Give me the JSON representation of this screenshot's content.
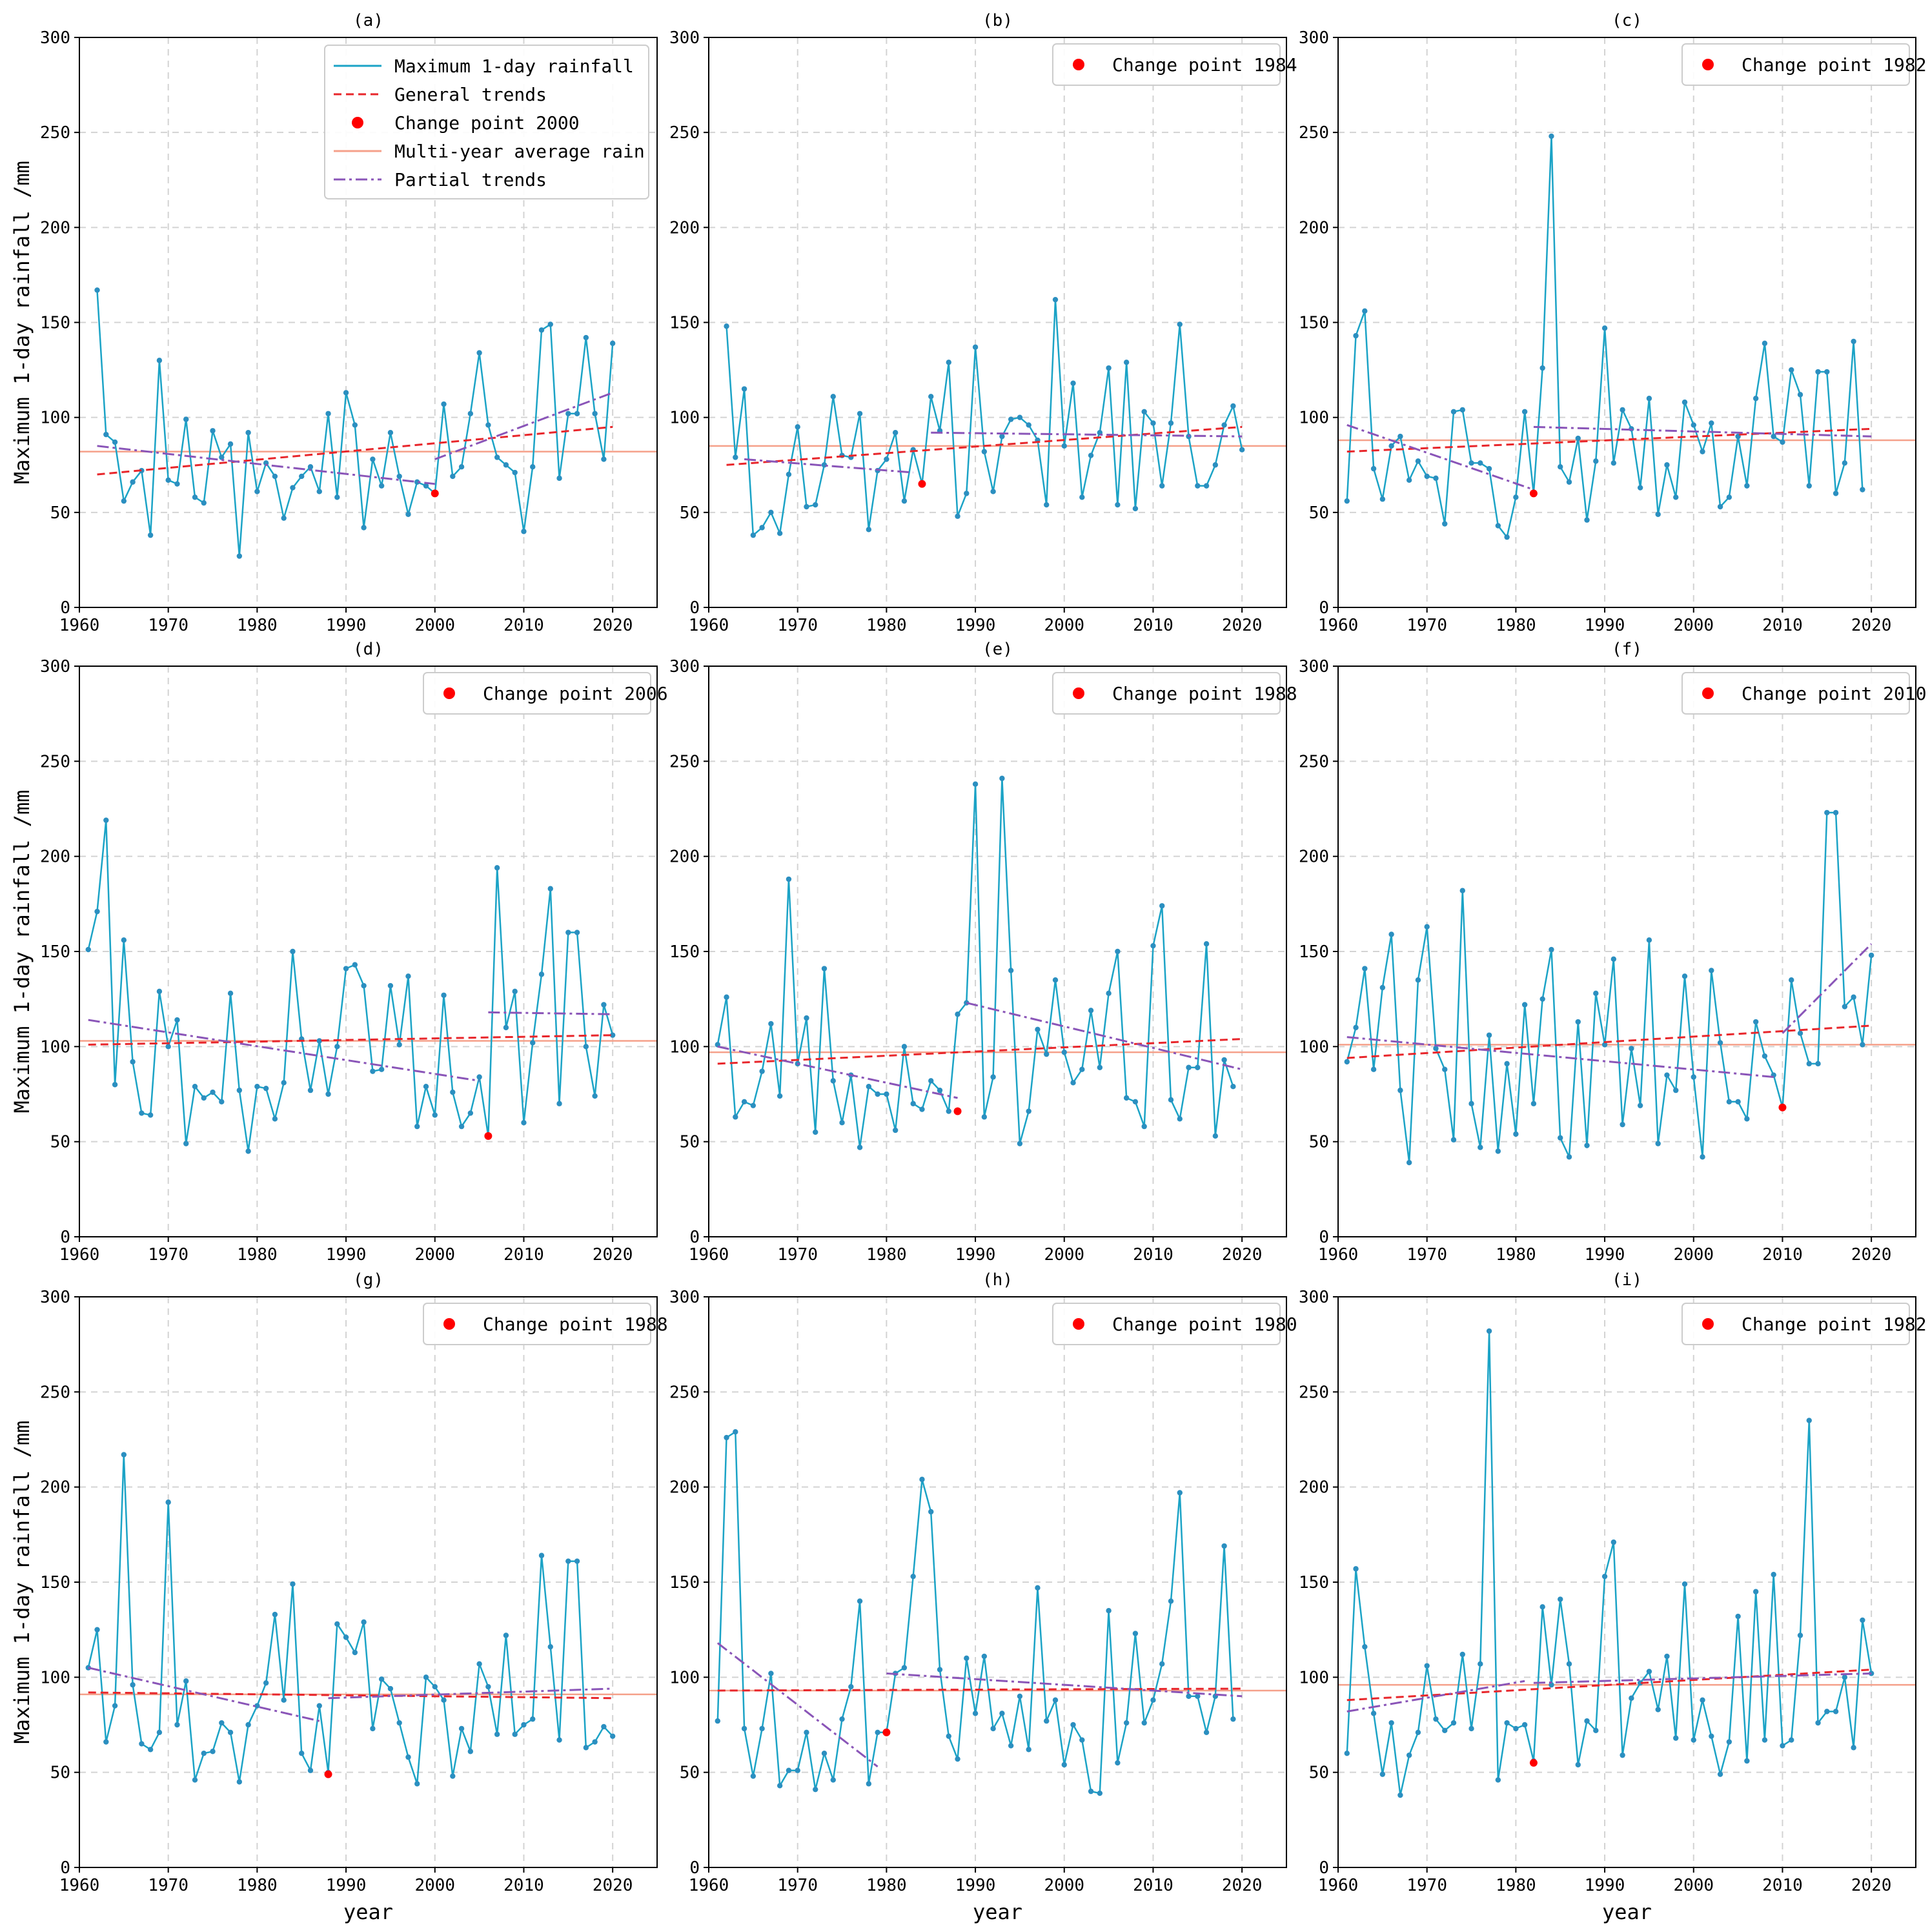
{
  "figure": {
    "y_label": "Maximum 1-day rainfall /mm",
    "x_label": "year",
    "colors": {
      "series": "#1ba3c6",
      "series_point": "#2b8fc0",
      "general_trend": "#e8262b",
      "partial_trend": "#8a55b8",
      "average": "#f5a08a",
      "change_point": "#ff0000",
      "grid": "#d3d3d3"
    }
  },
  "chart_data": [
    {
      "panel": "(a)",
      "type": "line",
      "xlabel": "",
      "ylabel": "Maximum 1-day rainfall /mm",
      "xlim": [
        1960,
        2025
      ],
      "ylim": [
        0,
        300
      ],
      "xticks": [
        "1960",
        "1970",
        "1980",
        "1990",
        "2000",
        "2010",
        "2020"
      ],
      "yticks": [
        "0",
        "50",
        "100",
        "150",
        "200",
        "250",
        "300"
      ],
      "start_year": 1962,
      "values": [
        167,
        91,
        87,
        56,
        66,
        72,
        38,
        130,
        67,
        65,
        99,
        58,
        55,
        93,
        79,
        86,
        27,
        92,
        61,
        76,
        69,
        47,
        63,
        69,
        74,
        61,
        102,
        58,
        113,
        96,
        42,
        78,
        64,
        92,
        69,
        49,
        66,
        64,
        60,
        107,
        69,
        74,
        102,
        134,
        96,
        79,
        75,
        71,
        40,
        74,
        146,
        149,
        68,
        102,
        102,
        142,
        102,
        78,
        139
      ],
      "general_trend": [
        [
          1962,
          70
        ],
        [
          2020,
          95
        ]
      ],
      "average": 82,
      "partial_trends": [
        [
          [
            1962,
            85
          ],
          [
            2000,
            65
          ]
        ],
        [
          [
            2000,
            78
          ],
          [
            2020,
            113
          ]
        ]
      ],
      "change_point": {
        "year": 2000,
        "value": 60
      },
      "legend_entries": {
        "rainfall": "Maximum 1-day rainfall",
        "general": "General trends",
        "change": "Change point 2000",
        "average": "Multi-year average rain",
        "partial": "Partial trends"
      }
    },
    {
      "panel": "(b)",
      "type": "line",
      "xlabel": "",
      "ylabel": "",
      "xlim": [
        1960,
        2025
      ],
      "ylim": [
        0,
        300
      ],
      "xticks": [
        "1960",
        "1970",
        "1980",
        "1990",
        "2000",
        "2010",
        "2020"
      ],
      "yticks": [
        "0",
        "50",
        "100",
        "150",
        "200",
        "250",
        "300"
      ],
      "start_year": 1962,
      "values": [
        148,
        79,
        115,
        38,
        42,
        50,
        39,
        70,
        95,
        53,
        54,
        75,
        111,
        80,
        79,
        102,
        41,
        72,
        78,
        92,
        56,
        83,
        65,
        111,
        93,
        129,
        48,
        60,
        137,
        82,
        61,
        90,
        99,
        100,
        96,
        88,
        54,
        162,
        85,
        118,
        58,
        80,
        92,
        126,
        54,
        129,
        52,
        103,
        97,
        64,
        97,
        149,
        90,
        64,
        64,
        75,
        96,
        106,
        83
      ],
      "general_trend": [
        [
          1962,
          75
        ],
        [
          2020,
          95
        ]
      ],
      "average": 85,
      "partial_trends": [
        [
          [
            1964,
            78
          ],
          [
            1983,
            71
          ]
        ],
        [
          [
            1985,
            92
          ],
          [
            2020,
            90
          ]
        ]
      ],
      "change_point": {
        "year": 1984,
        "value": 65
      },
      "legend_entries": {
        "change": "Change point 1984"
      }
    },
    {
      "panel": "(c)",
      "type": "line",
      "xlabel": "",
      "ylabel": "",
      "xlim": [
        1960,
        2025
      ],
      "ylim": [
        0,
        300
      ],
      "xticks": [
        "1960",
        "1970",
        "1980",
        "1990",
        "2000",
        "2010",
        "2020"
      ],
      "yticks": [
        "0",
        "50",
        "100",
        "150",
        "200",
        "250",
        "300"
      ],
      "start_year": 1961,
      "values": [
        56,
        143,
        156,
        73,
        57,
        85,
        90,
        67,
        77,
        69,
        68,
        44,
        103,
        104,
        76,
        76,
        73,
        43,
        37,
        58,
        103,
        60,
        126,
        248,
        74,
        66,
        89,
        46,
        77,
        147,
        76,
        104,
        94,
        63,
        110,
        49,
        75,
        58,
        108,
        96,
        82,
        97,
        53,
        58,
        90,
        64,
        110,
        139,
        90,
        87,
        125,
        112,
        64,
        124,
        124,
        60,
        76,
        140,
        62
      ],
      "general_trend": [
        [
          1961,
          82
        ],
        [
          2020,
          94
        ]
      ],
      "average": 88,
      "partial_trends": [
        [
          [
            1961,
            96
          ],
          [
            1982,
            62
          ]
        ],
        [
          [
            1982,
            95
          ],
          [
            2020,
            90
          ]
        ]
      ],
      "change_point": {
        "year": 1982,
        "value": 60
      },
      "legend_entries": {
        "change": "Change point 1982"
      }
    },
    {
      "panel": "(d)",
      "type": "line",
      "xlabel": "",
      "ylabel": "Maximum 1-day rainfall /mm",
      "xlim": [
        1960,
        2025
      ],
      "ylim": [
        0,
        300
      ],
      "xticks": [
        "1960",
        "1970",
        "1980",
        "1990",
        "2000",
        "2010",
        "2020"
      ],
      "yticks": [
        "0",
        "50",
        "100",
        "150",
        "200",
        "250",
        "300"
      ],
      "start_year": 1961,
      "values": [
        151,
        171,
        219,
        80,
        156,
        92,
        65,
        64,
        129,
        100,
        114,
        49,
        79,
        73,
        76,
        71,
        128,
        77,
        45,
        79,
        78,
        62,
        81,
        150,
        104,
        77,
        103,
        75,
        100,
        141,
        143,
        132,
        87,
        88,
        132,
        101,
        137,
        58,
        79,
        64,
        127,
        76,
        58,
        65,
        84,
        53,
        194,
        110,
        129,
        60,
        102,
        138,
        183,
        70,
        160,
        160,
        100,
        74,
        122,
        106
      ],
      "general_trend": [
        [
          1961,
          101
        ],
        [
          2020,
          106
        ]
      ],
      "average": 103,
      "partial_trends": [
        [
          [
            1961,
            114
          ],
          [
            2005,
            82
          ]
        ],
        [
          [
            2006,
            118
          ],
          [
            2020,
            117
          ]
        ]
      ],
      "change_point": {
        "year": 2006,
        "value": 53
      },
      "legend_entries": {
        "change": "Change point 2006"
      }
    },
    {
      "panel": "(e)",
      "type": "line",
      "xlabel": "",
      "ylabel": "",
      "xlim": [
        1960,
        2025
      ],
      "ylim": [
        0,
        300
      ],
      "xticks": [
        "1960",
        "1970",
        "1980",
        "1990",
        "2000",
        "2010",
        "2020"
      ],
      "yticks": [
        "0",
        "50",
        "100",
        "150",
        "200",
        "250",
        "300"
      ],
      "start_year": 1961,
      "values": [
        101,
        126,
        63,
        71,
        69,
        87,
        112,
        74,
        188,
        91,
        115,
        55,
        141,
        82,
        60,
        85,
        47,
        79,
        75,
        75,
        56,
        100,
        70,
        67,
        82,
        77,
        66,
        117,
        123,
        238,
        63,
        84,
        241,
        140,
        49,
        66,
        109,
        96,
        135,
        97,
        81,
        88,
        119,
        89,
        128,
        150,
        73,
        71,
        58,
        153,
        174,
        72,
        62,
        89,
        89,
        154,
        53,
        93,
        79
      ],
      "general_trend": [
        [
          1961,
          91
        ],
        [
          2020,
          104
        ]
      ],
      "average": 97,
      "partial_trends": [
        [
          [
            1961,
            100
          ],
          [
            1988,
            73
          ]
        ],
        [
          [
            1989,
            123
          ],
          [
            2020,
            88
          ]
        ]
      ],
      "change_point": {
        "year": 1988,
        "value": 66
      },
      "legend_entries": {
        "change": "Change point 1988"
      }
    },
    {
      "panel": "(f)",
      "type": "line",
      "xlabel": "",
      "ylabel": "",
      "xlim": [
        1960,
        2025
      ],
      "ylim": [
        0,
        300
      ],
      "xticks": [
        "1960",
        "1970",
        "1980",
        "1990",
        "2000",
        "2010",
        "2020"
      ],
      "yticks": [
        "0",
        "50",
        "100",
        "150",
        "200",
        "250",
        "300"
      ],
      "start_year": 1961,
      "values": [
        92,
        110,
        141,
        88,
        131,
        159,
        77,
        39,
        135,
        163,
        99,
        88,
        51,
        182,
        70,
        47,
        106,
        45,
        91,
        54,
        122,
        70,
        125,
        151,
        52,
        42,
        113,
        48,
        128,
        101,
        146,
        59,
        99,
        69,
        156,
        49,
        85,
        77,
        137,
        84,
        42,
        140,
        102,
        71,
        71,
        62,
        113,
        95,
        85,
        68,
        135,
        107,
        91,
        91,
        223,
        223,
        121,
        126,
        101,
        148
      ],
      "general_trend": [
        [
          1961,
          94
        ],
        [
          2020,
          111
        ]
      ],
      "average": 101,
      "partial_trends": [
        [
          [
            1961,
            105
          ],
          [
            2009,
            84
          ]
        ],
        [
          [
            2010,
            107
          ],
          [
            2020,
            154
          ]
        ]
      ],
      "change_point": {
        "year": 2010,
        "value": 68
      },
      "legend_entries": {
        "change": "Change point 2010"
      }
    },
    {
      "panel": "(g)",
      "type": "line",
      "xlabel": "year",
      "ylabel": "Maximum 1-day rainfall /mm",
      "xlim": [
        1960,
        2025
      ],
      "ylim": [
        0,
        300
      ],
      "xticks": [
        "1960",
        "1970",
        "1980",
        "1990",
        "2000",
        "2010",
        "2020"
      ],
      "yticks": [
        "0",
        "50",
        "100",
        "150",
        "200",
        "250",
        "300"
      ],
      "start_year": 1961,
      "values": [
        105,
        125,
        66,
        85,
        217,
        96,
        65,
        62,
        71,
        192,
        75,
        98,
        46,
        60,
        61,
        76,
        71,
        45,
        75,
        85,
        97,
        133,
        88,
        149,
        60,
        51,
        85,
        50,
        128,
        121,
        113,
        129,
        73,
        99,
        94,
        76,
        58,
        44,
        100,
        95,
        88,
        48,
        73,
        61,
        107,
        95,
        70,
        122,
        70,
        75,
        78,
        164,
        116,
        67,
        161,
        161,
        63,
        66,
        74,
        69
      ],
      "general_trend": [
        [
          1961,
          92
        ],
        [
          2020,
          89
        ]
      ],
      "average": 91,
      "partial_trends": [
        [
          [
            1961,
            105
          ],
          [
            1987,
            77
          ]
        ],
        [
          [
            1988,
            89
          ],
          [
            2020,
            94
          ]
        ]
      ],
      "change_point": {
        "year": 1988,
        "value": 49
      },
      "legend_entries": {
        "change": "Change point 1988"
      }
    },
    {
      "panel": "(h)",
      "type": "line",
      "xlabel": "year",
      "ylabel": "",
      "xlim": [
        1960,
        2025
      ],
      "ylim": [
        0,
        300
      ],
      "xticks": [
        "1960",
        "1970",
        "1980",
        "1990",
        "2000",
        "2010",
        "2020"
      ],
      "yticks": [
        "0",
        "50",
        "100",
        "150",
        "200",
        "250",
        "300"
      ],
      "start_year": 1961,
      "values": [
        77,
        226,
        229,
        73,
        48,
        73,
        102,
        43,
        51,
        51,
        71,
        41,
        60,
        46,
        78,
        95,
        140,
        44,
        71,
        71,
        102,
        105,
        153,
        204,
        187,
        104,
        69,
        57,
        110,
        81,
        111,
        73,
        81,
        64,
        90,
        62,
        147,
        77,
        88,
        54,
        75,
        67,
        40,
        39,
        135,
        55,
        76,
        123,
        76,
        88,
        107,
        140,
        197,
        90,
        90,
        71,
        90,
        169,
        78
      ],
      "general_trend": [
        [
          1961,
          93
        ],
        [
          2020,
          94
        ]
      ],
      "average": 93,
      "partial_trends": [
        [
          [
            1961,
            118
          ],
          [
            1979,
            53
          ]
        ],
        [
          [
            1980,
            102
          ],
          [
            2020,
            90
          ]
        ]
      ],
      "change_point": {
        "year": 1980,
        "value": 71
      },
      "legend_entries": {
        "change": "Change point 1980"
      }
    },
    {
      "panel": "(i)",
      "type": "line",
      "xlabel": "year",
      "ylabel": "",
      "xlim": [
        1960,
        2025
      ],
      "ylim": [
        0,
        300
      ],
      "xticks": [
        "1960",
        "1970",
        "1980",
        "1990",
        "2000",
        "2010",
        "2020"
      ],
      "yticks": [
        "0",
        "50",
        "100",
        "150",
        "200",
        "250",
        "300"
      ],
      "start_year": 1961,
      "values": [
        60,
        157,
        116,
        81,
        49,
        76,
        38,
        59,
        71,
        106,
        78,
        72,
        76,
        112,
        73,
        107,
        282,
        46,
        76,
        73,
        75,
        56,
        137,
        96,
        141,
        107,
        54,
        77,
        72,
        153,
        171,
        59,
        89,
        97,
        103,
        83,
        111,
        68,
        149,
        67,
        88,
        69,
        49,
        66,
        132,
        56,
        145,
        67,
        154,
        64,
        67,
        122,
        235,
        76,
        82,
        82,
        100,
        63,
        130,
        102
      ],
      "general_trend": [
        [
          1961,
          88
        ],
        [
          2020,
          104
        ]
      ],
      "average": 96,
      "partial_trends": [
        [
          [
            1961,
            82
          ],
          [
            1981,
            98
          ]
        ],
        [
          [
            1982,
            97
          ],
          [
            2020,
            102
          ]
        ]
      ],
      "change_point": {
        "year": 1982,
        "value": 55
      },
      "legend_entries": {
        "change": "Change point 1982"
      }
    }
  ]
}
